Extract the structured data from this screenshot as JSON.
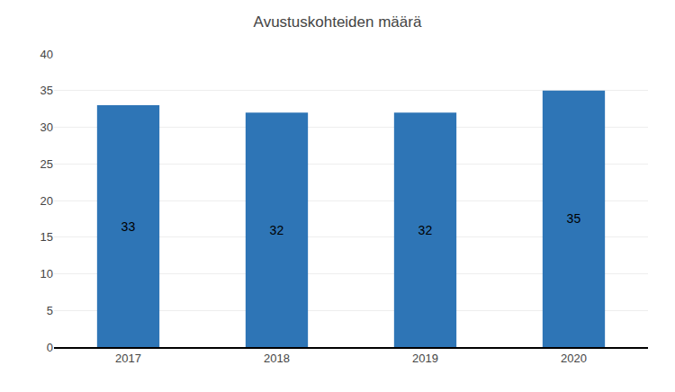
{
  "chart_data": {
    "type": "bar",
    "title": "Avustuskohteiden määrä",
    "categories": [
      "2017",
      "2018",
      "2019",
      "2020"
    ],
    "values": [
      33,
      32,
      32,
      35
    ],
    "color": "#2E75B6",
    "ylim": [
      0,
      40
    ],
    "yticks": [
      0,
      5,
      10,
      15,
      20,
      25,
      30,
      35,
      40
    ],
    "grid": true,
    "data_labels": true
  }
}
